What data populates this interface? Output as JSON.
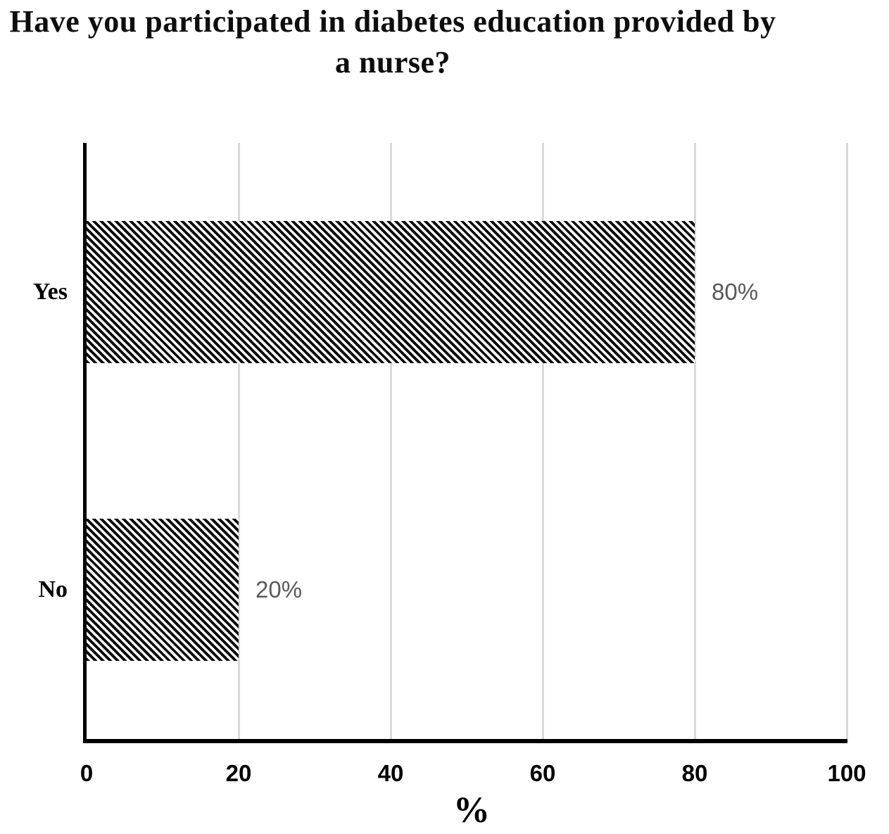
{
  "title_lines": [
    "Have you participated in diabetes education provided by",
    "a nurse?"
  ],
  "chart_data": {
    "type": "bar",
    "orientation": "horizontal",
    "title": "Have you participated in diabetes education provided by a nurse?",
    "categories": [
      "Yes",
      "No"
    ],
    "values": [
      80,
      20
    ],
    "data_labels": [
      "80%",
      "20%"
    ],
    "xlabel": "%",
    "ylabel": "",
    "xlim": [
      0,
      100
    ],
    "x_ticks": [
      0,
      20,
      40,
      60,
      80,
      100
    ],
    "grid": "vertical-gridlines-on",
    "legend": "none",
    "bar_fill": "black-white-diagonal-hatch",
    "colors": {
      "bar_stripe": "#0a0a0a",
      "bar_background": "#ffffff",
      "gridline": "#d9d9d9",
      "axis_line": "#000000",
      "data_label": "#595959",
      "tick_label": "#000000",
      "title_text": "#0d0d0d",
      "page_background": "#ffffff"
    }
  }
}
